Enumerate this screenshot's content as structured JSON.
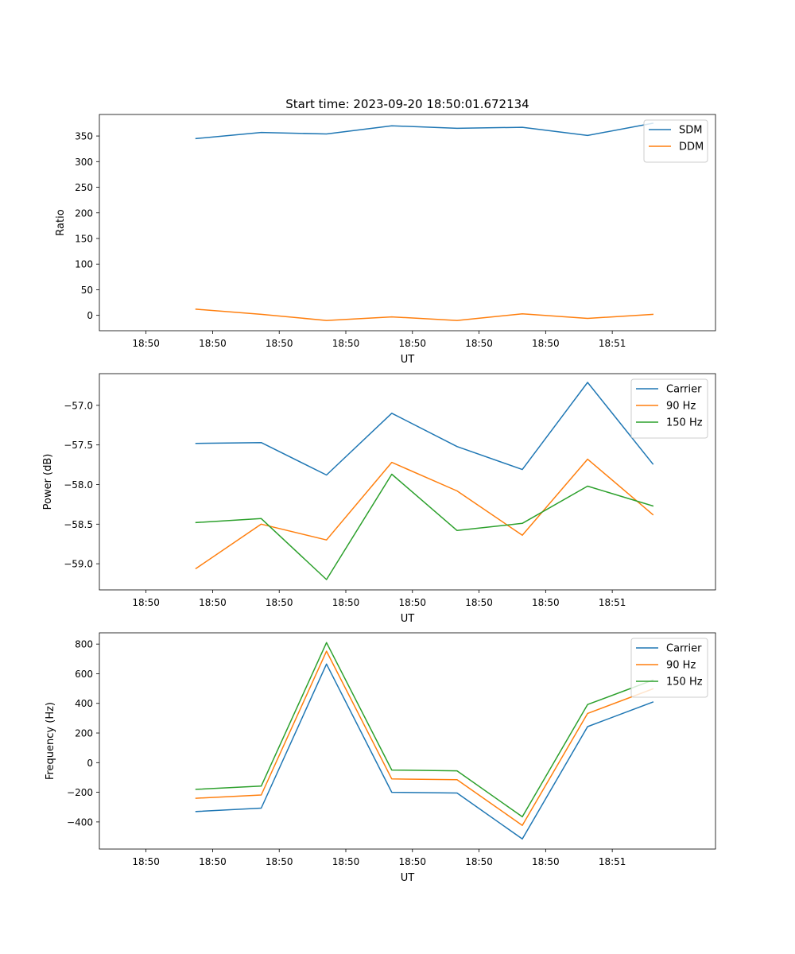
{
  "colors": {
    "blue": "#1f77b4",
    "orange": "#ff7f0e",
    "green": "#2ca02c"
  },
  "chart_data": [
    {
      "type": "line",
      "title": "Start time: 2023-09-20 18:50:01.672134",
      "xlabel": "UT",
      "ylabel": "Ratio",
      "xticklabels": [
        "18:50",
        "18:50",
        "18:50",
        "18:50",
        "18:50",
        "18:50",
        "18:50",
        "18:51"
      ],
      "yticks": [
        0,
        50,
        100,
        150,
        200,
        250,
        300,
        350
      ],
      "yticklabels": [
        "0",
        "50",
        "100",
        "150",
        "200",
        "250",
        "300",
        "350"
      ],
      "xlim": [
        -0.7,
        8.55
      ],
      "ylim": [
        -30,
        392
      ],
      "legend": "top-right",
      "x": [
        0.75,
        1.73,
        2.71,
        3.69,
        4.67,
        5.65,
        6.63,
        7.61
      ],
      "series": [
        {
          "name": "SDM",
          "color": "#1f77b4",
          "values": [
            345,
            357,
            354,
            370,
            365,
            367,
            351,
            375
          ]
        },
        {
          "name": "DDM",
          "color": "#ff7f0e",
          "values": [
            12,
            2,
            -10,
            -3,
            -10,
            3,
            -6,
            2
          ]
        }
      ]
    },
    {
      "type": "line",
      "title": "",
      "xlabel": "UT",
      "ylabel": "Power (dB)",
      "xticklabels": [
        "18:50",
        "18:50",
        "18:50",
        "18:50",
        "18:50",
        "18:50",
        "18:50",
        "18:51"
      ],
      "yticks": [
        -59.0,
        -58.5,
        -58.0,
        -57.5,
        -57.0
      ],
      "yticklabels": [
        "−59.0",
        "−58.5",
        "−58.0",
        "−57.5",
        "−57.0"
      ],
      "xlim": [
        -0.7,
        8.55
      ],
      "ylim": [
        -59.33,
        -56.6
      ],
      "legend": "top-right",
      "x": [
        0.75,
        1.73,
        2.71,
        3.69,
        4.67,
        5.65,
        6.63,
        7.61
      ],
      "series": [
        {
          "name": "Carrier",
          "color": "#1f77b4",
          "values": [
            -57.48,
            -57.47,
            -57.88,
            -57.1,
            -57.52,
            -57.81,
            -56.71,
            -57.74
          ]
        },
        {
          "name": "90 Hz",
          "color": "#ff7f0e",
          "values": [
            -59.06,
            -58.5,
            -58.7,
            -57.72,
            -58.08,
            -58.64,
            -57.68,
            -58.38
          ]
        },
        {
          "name": "150 Hz",
          "color": "#2ca02c",
          "values": [
            -58.48,
            -58.43,
            -59.2,
            -57.87,
            -58.58,
            -58.49,
            -58.02,
            -58.27
          ]
        }
      ]
    },
    {
      "type": "line",
      "title": "",
      "xlabel": "UT",
      "ylabel": "Frequency (Hz)",
      "xticklabels": [
        "18:50",
        "18:50",
        "18:50",
        "18:50",
        "18:50",
        "18:50",
        "18:50",
        "18:51"
      ],
      "yticks": [
        -400,
        -200,
        0,
        200,
        400,
        600,
        800
      ],
      "yticklabels": [
        "−400",
        "−200",
        "0",
        "200",
        "400",
        "600",
        "800"
      ],
      "xlim": [
        -0.7,
        8.55
      ],
      "ylim": [
        -583,
        876
      ],
      "legend": "top-right",
      "x": [
        0.75,
        1.73,
        2.71,
        3.69,
        4.67,
        5.65,
        6.63,
        7.61
      ],
      "series": [
        {
          "name": "Carrier",
          "color": "#1f77b4",
          "values": [
            -330,
            -307,
            665,
            -200,
            -205,
            -515,
            243,
            409
          ]
        },
        {
          "name": "90 Hz",
          "color": "#ff7f0e",
          "values": [
            -240,
            -218,
            752,
            -110,
            -115,
            -423,
            332,
            498
          ]
        },
        {
          "name": "150 Hz",
          "color": "#2ca02c",
          "values": [
            -180,
            -158,
            810,
            -50,
            -55,
            -365,
            392,
            557
          ]
        }
      ]
    }
  ]
}
